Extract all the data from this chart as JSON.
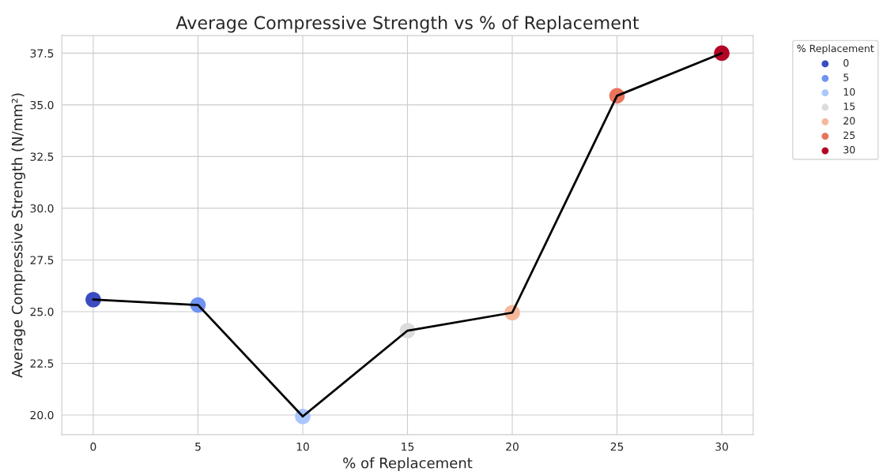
{
  "chart_data": {
    "type": "scatter",
    "title": "Average Compressive Strength vs % of Replacement",
    "xlabel": "% of Replacement",
    "ylabel": "Average Compressive Strength (N/mm²)",
    "legend_title": "% Replacement",
    "xlim": [
      -1.5,
      31.5
    ],
    "ylim": [
      19.05,
      38.35
    ],
    "xticks": [
      0,
      5,
      10,
      15,
      20,
      25,
      30
    ],
    "yticks": [
      {
        "value": 20,
        "label": "20.0"
      },
      {
        "value": 22.5,
        "label": "22.5"
      },
      {
        "value": 25,
        "label": "25.0"
      },
      {
        "value": 27.5,
        "label": "27.5"
      },
      {
        "value": 30,
        "label": "30.0"
      },
      {
        "value": 32.5,
        "label": "32.5"
      },
      {
        "value": 35,
        "label": "35.0"
      },
      {
        "value": 37.5,
        "label": "37.5"
      }
    ],
    "grid": true,
    "legend": "top right",
    "marker": "circle",
    "series": [
      {
        "name": "0",
        "color": "#3b4cc0",
        "x": [
          0
        ],
        "values": [
          25.58
        ]
      },
      {
        "name": "5",
        "color": "#7093f3",
        "x": [
          5
        ],
        "values": [
          25.32
        ]
      },
      {
        "name": "10",
        "color": "#aac7fd",
        "x": [
          10
        ],
        "values": [
          19.93
        ]
      },
      {
        "name": "15",
        "color": "#dddcdc",
        "x": [
          15
        ],
        "values": [
          24.08
        ]
      },
      {
        "name": "20",
        "color": "#f7b89c",
        "x": [
          20
        ],
        "values": [
          24.95
        ]
      },
      {
        "name": "25",
        "color": "#e7745b",
        "x": [
          25
        ],
        "values": [
          35.44
        ]
      },
      {
        "name": "30",
        "color": "#b40426",
        "x": [
          30
        ],
        "values": [
          37.5
        ]
      },
      {
        "type": "line",
        "color": "#000000",
        "x": [
          0,
          5,
          10,
          15,
          20,
          25,
          30
        ],
        "values": [
          25.58,
          25.32,
          19.93,
          24.08,
          24.95,
          35.44,
          37.5
        ],
        "marker": "none",
        "line_style": "solid"
      }
    ]
  }
}
